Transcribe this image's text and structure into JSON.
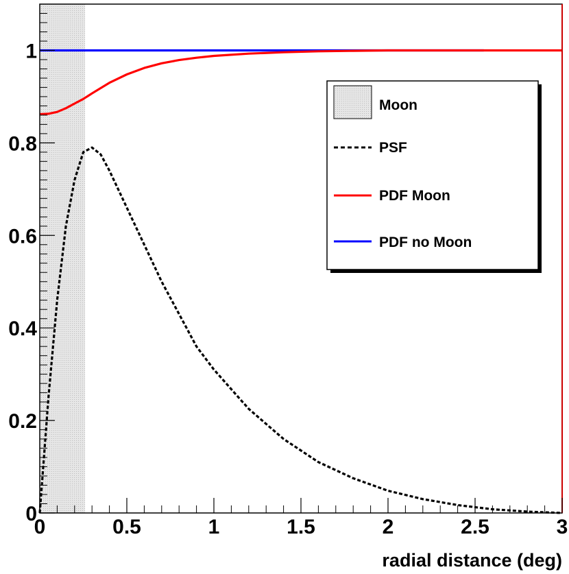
{
  "colors": {
    "psf": "#000000",
    "pdf_moon": "#ff0000",
    "pdf_no_moon": "#0000ff",
    "moon_fill": "#d3d3d3",
    "frame": "#000000",
    "right_edge": "#cc0000"
  },
  "chart_data": {
    "type": "line",
    "title": "",
    "xlabel": "radial distance (deg)",
    "ylabel": "",
    "xlim": [
      0,
      3
    ],
    "ylim": [
      0,
      1.1
    ],
    "grid": false,
    "legend_placement": "top-right",
    "x_ticks": [
      {
        "value": 0,
        "label": "0"
      },
      {
        "value": 0.5,
        "label": "0.5"
      },
      {
        "value": 1,
        "label": "1"
      },
      {
        "value": 1.5,
        "label": "1.5"
      },
      {
        "value": 2,
        "label": "2"
      },
      {
        "value": 2.5,
        "label": "2.5"
      },
      {
        "value": 3,
        "label": "3"
      }
    ],
    "y_ticks": [
      {
        "value": 0,
        "label": "0"
      },
      {
        "value": 0.2,
        "label": "0.2"
      },
      {
        "value": 0.4,
        "label": "0.4"
      },
      {
        "value": 0.6,
        "label": "0.6"
      },
      {
        "value": 0.8,
        "label": "0.8"
      },
      {
        "value": 1,
        "label": "1"
      }
    ],
    "moon_region": {
      "name": "Moon",
      "x_from": 0,
      "x_to": 0.26
    },
    "series": [
      {
        "name": "PSF",
        "color": "#000000",
        "style": "dashed",
        "x": [
          0,
          0.05,
          0.1,
          0.15,
          0.2,
          0.25,
          0.3,
          0.35,
          0.4,
          0.5,
          0.6,
          0.7,
          0.8,
          0.9,
          1.0,
          1.2,
          1.4,
          1.6,
          1.8,
          2.0,
          2.2,
          2.4,
          2.6,
          2.8,
          3.0
        ],
        "y": [
          0,
          0.25,
          0.46,
          0.62,
          0.72,
          0.78,
          0.79,
          0.775,
          0.74,
          0.66,
          0.58,
          0.5,
          0.43,
          0.36,
          0.31,
          0.225,
          0.16,
          0.11,
          0.075,
          0.048,
          0.03,
          0.017,
          0.008,
          0.003,
          0.0
        ]
      },
      {
        "name": "PDF Moon",
        "color": "#ff0000",
        "style": "solid",
        "x": [
          0,
          0.05,
          0.1,
          0.15,
          0.2,
          0.25,
          0.3,
          0.4,
          0.5,
          0.6,
          0.7,
          0.8,
          0.9,
          1.0,
          1.2,
          1.4,
          1.6,
          1.8,
          2.0,
          2.5,
          3.0
        ],
        "y": [
          0.862,
          0.863,
          0.867,
          0.875,
          0.885,
          0.895,
          0.907,
          0.93,
          0.948,
          0.962,
          0.972,
          0.979,
          0.984,
          0.988,
          0.993,
          0.996,
          0.998,
          0.999,
          1.0,
          1.0,
          1.0
        ]
      },
      {
        "name": "PDF no Moon",
        "color": "#0000ff",
        "style": "solid",
        "x": [
          0,
          2.55
        ],
        "y": [
          1,
          1
        ]
      }
    ]
  }
}
